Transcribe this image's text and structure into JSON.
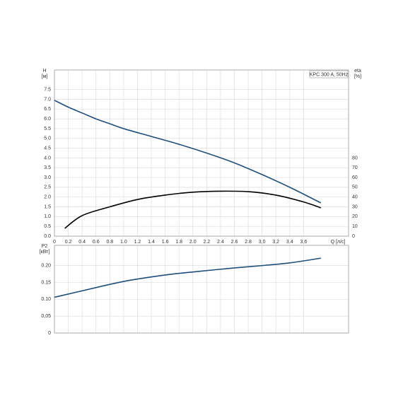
{
  "chart_data": [
    {
      "type": "line",
      "legend": "KPC 300 A, 50Hz",
      "ylabel": "H",
      "yunit": "[м]",
      "y2label": "eta",
      "y2unit": "[%]",
      "xlabel": "Q [л/с]",
      "xlim": [
        0,
        4.25
      ],
      "xticks": [
        0,
        0.2,
        0.4,
        0.6,
        0.8,
        {
          "value": 1.0,
          "label": "1.0"
        },
        1.2,
        1.4,
        1.6,
        1.8,
        {
          "value": 2.0,
          "label": "2.0"
        },
        2.2,
        2.4,
        2.6,
        2.8,
        {
          "value": 3.0,
          "label": "3,0"
        },
        {
          "value": 3.2,
          "label": "3,2"
        },
        {
          "value": 3.4,
          "label": "3,4"
        },
        {
          "value": 3.6,
          "label": "3,6"
        }
      ],
      "ylim": [
        0,
        8.5
      ],
      "yticks": [
        {
          "value": 0,
          "label": "0.0"
        },
        0.5,
        {
          "value": 1,
          "label": "1.0"
        },
        1.5,
        {
          "value": 2,
          "label": "2.0"
        },
        2.5,
        {
          "value": 3,
          "label": "3.0"
        },
        3.5,
        {
          "value": 4,
          "label": "4.0"
        },
        4.5,
        {
          "value": 5,
          "label": "5.0"
        },
        5.5,
        {
          "value": 6,
          "label": "6.0"
        },
        6.5,
        {
          "value": 7,
          "label": "7.0"
        },
        7.5
      ],
      "y2lim": [
        0,
        170
      ],
      "y2ticks": [
        0,
        10,
        20,
        30,
        40,
        50,
        60,
        70,
        80
      ],
      "grid": true,
      "series": [
        {
          "color": "#1f4e79",
          "x": [
            0,
            0.2,
            0.4,
            0.6,
            0.8,
            1.0,
            1.4,
            1.8,
            2.2,
            2.6,
            3.0,
            3.4,
            3.85
          ],
          "values": [
            6.95,
            6.6,
            6.3,
            6.0,
            5.75,
            5.5,
            5.1,
            4.7,
            4.25,
            3.75,
            3.15,
            2.5,
            1.7
          ]
        },
        {
          "color": "#000000",
          "axis": "y2",
          "x": [
            0.15,
            0.4,
            0.8,
            1.2,
            1.6,
            2.0,
            2.4,
            2.8,
            3.2,
            3.6,
            3.85
          ],
          "values": [
            8,
            21,
            30,
            37.5,
            42,
            45,
            46,
            45.5,
            42,
            35,
            29
          ]
        }
      ]
    },
    {
      "type": "line",
      "ylabel": "P2",
      "yunit": "[кВт]",
      "xlim": [
        0,
        4.25
      ],
      "ylim": [
        0,
        0.26
      ],
      "yticks": [
        0,
        {
          "value": 0.05,
          "label": "0,05"
        },
        {
          "value": 0.1,
          "label": "0.10"
        },
        {
          "value": 0.15,
          "label": "0.15"
        },
        {
          "value": 0.2,
          "label": "0.20"
        }
      ],
      "grid": true,
      "series": [
        {
          "color": "#1f4e79",
          "x": [
            0,
            0.4,
            1.0,
            1.6,
            2.0,
            2.6,
            3.0,
            3.4,
            3.85
          ],
          "values": [
            0.106,
            0.125,
            0.153,
            0.172,
            0.181,
            0.193,
            0.2,
            0.208,
            0.222
          ]
        }
      ]
    }
  ]
}
